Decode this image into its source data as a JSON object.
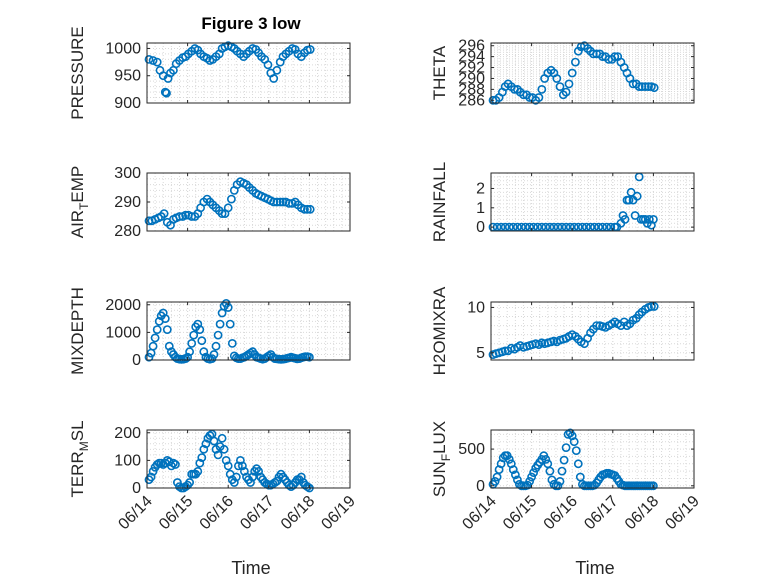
{
  "figure_title": "Figure 3 low",
  "colors": {
    "marker": "#0072BD",
    "axis": "#262626",
    "grid": "#d9d9d9"
  },
  "chart_data": [
    {
      "type": "scatter",
      "ylabel_main": "PRESSURE",
      "ylabel_sub": "",
      "ylabel_tail": "",
      "ylim": [
        900,
        1010
      ],
      "yticks": [
        "900",
        "950",
        "1000"
      ],
      "ytick_values": [
        900,
        950,
        1000
      ],
      "xlim": [
        0,
        5
      ],
      "xticks": [
        "06/14",
        "06/15",
        "06/16",
        "06/17",
        "06/18",
        "06/19"
      ],
      "show_xticklabels": false,
      "grid": "dotted",
      "x": [
        0.05,
        0.15,
        0.25,
        0.32,
        0.4,
        0.45,
        0.48,
        0.52,
        0.58,
        0.65,
        0.72,
        0.8,
        0.88,
        0.95,
        1.02,
        1.1,
        1.18,
        1.25,
        1.32,
        1.4,
        1.48,
        1.55,
        1.62,
        1.7,
        1.78,
        1.85,
        1.92,
        2.0,
        2.08,
        2.15,
        2.22,
        2.3,
        2.38,
        2.45,
        2.52,
        2.6,
        2.68,
        2.75,
        2.82,
        2.9,
        2.98,
        3.05,
        3.12,
        3.2,
        3.28,
        3.35,
        3.42,
        3.5,
        3.58,
        3.65,
        3.72,
        3.8,
        3.88,
        3.95,
        4.02
      ],
      "y": [
        980,
        978,
        975,
        960,
        950,
        920,
        918,
        945,
        955,
        960,
        972,
        978,
        983,
        985,
        990,
        995,
        1000,
        997,
        990,
        985,
        982,
        978,
        980,
        985,
        990,
        1000,
        1003,
        1005,
        1003,
        1000,
        995,
        990,
        985,
        990,
        995,
        1000,
        998,
        992,
        985,
        980,
        970,
        955,
        945,
        960,
        975,
        985,
        990,
        995,
        1000,
        998,
        990,
        985,
        992,
        997,
        998
      ]
    },
    {
      "type": "scatter",
      "ylabel_main": "THETA",
      "ylabel_sub": "",
      "ylabel_tail": "",
      "ylim": [
        285.5,
        296.5
      ],
      "yticks": [
        "286",
        "288",
        "290",
        "292",
        "294",
        "296"
      ],
      "ytick_values": [
        286,
        288,
        290,
        292,
        294,
        296
      ],
      "xlim": [
        0,
        5
      ],
      "xticks": [
        "06/14",
        "06/15",
        "06/16",
        "06/17",
        "06/18",
        "06/19"
      ],
      "show_xticklabels": false,
      "grid": "dotted",
      "x": [
        0.05,
        0.12,
        0.2,
        0.28,
        0.35,
        0.42,
        0.5,
        0.58,
        0.65,
        0.72,
        0.8,
        0.88,
        0.95,
        1.02,
        1.1,
        1.18,
        1.25,
        1.32,
        1.4,
        1.48,
        1.55,
        1.62,
        1.7,
        1.78,
        1.85,
        1.92,
        2.0,
        2.08,
        2.15,
        2.22,
        2.3,
        2.38,
        2.45,
        2.52,
        2.6,
        2.68,
        2.75,
        2.82,
        2.9,
        2.98,
        3.05,
        3.12,
        3.2,
        3.28,
        3.35,
        3.42,
        3.5,
        3.58,
        3.65,
        3.72,
        3.8,
        3.88,
        3.95,
        4.02
      ],
      "y": [
        286,
        286,
        286.5,
        287.5,
        288.5,
        289,
        288.5,
        288,
        288,
        287.5,
        287,
        287,
        286.5,
        286.5,
        286,
        286.5,
        288,
        290,
        291,
        291.5,
        291,
        290,
        288.5,
        287,
        287.5,
        289,
        291,
        293,
        295,
        295.8,
        296,
        295.5,
        295,
        294.5,
        294.5,
        294.5,
        294,
        294,
        293.5,
        293.5,
        294,
        294,
        293,
        292,
        291,
        290,
        289,
        289,
        288.5,
        288.5,
        288.5,
        288.5,
        288.5,
        288.3
      ]
    },
    {
      "type": "scatter",
      "ylabel_main": "AIR",
      "ylabel_sub": "T",
      "ylabel_tail": "EMP",
      "ylim": [
        280,
        300
      ],
      "yticks": [
        "280",
        "290",
        "300"
      ],
      "ytick_values": [
        280,
        290,
        300
      ],
      "xlim": [
        0,
        5
      ],
      "xticks": [
        "06/14",
        "06/15",
        "06/16",
        "06/17",
        "06/18",
        "06/19"
      ],
      "show_xticklabels": false,
      "grid": "dotted",
      "x": [
        0.05,
        0.12,
        0.2,
        0.28,
        0.35,
        0.42,
        0.5,
        0.58,
        0.65,
        0.72,
        0.8,
        0.88,
        0.95,
        1.02,
        1.1,
        1.18,
        1.25,
        1.32,
        1.4,
        1.48,
        1.55,
        1.62,
        1.7,
        1.78,
        1.85,
        1.92,
        2.0,
        2.08,
        2.15,
        2.22,
        2.3,
        2.38,
        2.45,
        2.52,
        2.6,
        2.68,
        2.75,
        2.82,
        2.9,
        2.98,
        3.05,
        3.12,
        3.2,
        3.28,
        3.35,
        3.42,
        3.5,
        3.58,
        3.65,
        3.72,
        3.8,
        3.88,
        3.95,
        4.02
      ],
      "y": [
        283.5,
        283.5,
        284,
        284.5,
        285,
        286,
        283,
        282,
        284,
        284.5,
        285,
        285,
        285.5,
        285.5,
        285,
        285,
        286,
        288,
        290,
        291,
        290,
        289,
        288,
        287,
        286,
        286,
        288,
        291,
        294,
        296,
        297,
        296.5,
        296,
        295,
        294,
        293,
        292.5,
        292,
        291.5,
        291,
        290.5,
        290,
        290,
        290,
        290,
        290,
        289.5,
        289.5,
        290,
        289,
        288,
        287.5,
        287.5,
        287.5
      ]
    },
    {
      "type": "scatter",
      "ylabel_main": "RAINFALL",
      "ylabel_sub": "",
      "ylabel_tail": "",
      "ylim": [
        -0.2,
        2.8
      ],
      "yticks": [
        "0",
        "1",
        "2"
      ],
      "ytick_values": [
        0,
        1,
        2
      ],
      "xlim": [
        0,
        5
      ],
      "xticks": [
        "06/14",
        "06/15",
        "06/16",
        "06/17",
        "06/18",
        "06/19"
      ],
      "show_xticklabels": false,
      "grid": "dotted",
      "x": [
        0.05,
        0.15,
        0.25,
        0.35,
        0.45,
        0.55,
        0.65,
        0.75,
        0.85,
        0.95,
        1.05,
        1.15,
        1.25,
        1.35,
        1.45,
        1.55,
        1.65,
        1.75,
        1.85,
        1.95,
        2.05,
        2.15,
        2.25,
        2.35,
        2.45,
        2.55,
        2.65,
        2.75,
        2.85,
        2.95,
        3.05,
        3.1,
        3.2,
        3.25,
        3.3,
        3.35,
        3.4,
        3.45,
        3.5,
        3.55,
        3.6,
        3.65,
        3.7,
        3.75,
        3.8,
        3.85,
        3.9,
        3.95,
        4.0
      ],
      "y": [
        0,
        0,
        0,
        0,
        0,
        0,
        0,
        0,
        0,
        0,
        0,
        0,
        0,
        0,
        0,
        0,
        0,
        0,
        0,
        0,
        0,
        0,
        0,
        0,
        0,
        0,
        0,
        0,
        0,
        0,
        0,
        0,
        0.2,
        0.6,
        0.4,
        1.4,
        1.4,
        1.8,
        1.4,
        0.6,
        1.6,
        2.6,
        0.4,
        0.4,
        0.4,
        0.2,
        0.4,
        0.1,
        0.4
      ]
    },
    {
      "type": "scatter",
      "ylabel_main": "MIXDEPTH",
      "ylabel_sub": "",
      "ylabel_tail": "",
      "ylim": [
        0,
        2100
      ],
      "yticks": [
        "0",
        "1000",
        "2000"
      ],
      "ytick_values": [
        0,
        1000,
        2000
      ],
      "xlim": [
        0,
        5
      ],
      "xticks": [
        "06/14",
        "06/15",
        "06/16",
        "06/17",
        "06/18",
        "06/19"
      ],
      "show_xticklabels": false,
      "grid": "dotted",
      "x": [
        0.05,
        0.1,
        0.15,
        0.2,
        0.25,
        0.3,
        0.35,
        0.4,
        0.45,
        0.5,
        0.55,
        0.6,
        0.65,
        0.7,
        0.75,
        0.8,
        0.85,
        0.9,
        0.95,
        1.0,
        1.05,
        1.1,
        1.15,
        1.2,
        1.25,
        1.3,
        1.35,
        1.4,
        1.45,
        1.5,
        1.55,
        1.6,
        1.65,
        1.7,
        1.75,
        1.8,
        1.85,
        1.9,
        1.95,
        2.0,
        2.05,
        2.1,
        2.15,
        2.2,
        2.25,
        2.3,
        2.35,
        2.4,
        2.45,
        2.5,
        2.55,
        2.6,
        2.65,
        2.7,
        2.75,
        2.8,
        2.85,
        2.9,
        2.95,
        3.0,
        3.05,
        3.1,
        3.15,
        3.2,
        3.25,
        3.3,
        3.35,
        3.4,
        3.45,
        3.5,
        3.55,
        3.6,
        3.65,
        3.7,
        3.75,
        3.8,
        3.85,
        3.9,
        3.95,
        4.0
      ],
      "y": [
        100,
        250,
        500,
        800,
        1100,
        1400,
        1600,
        1700,
        1500,
        1100,
        500,
        300,
        200,
        100,
        50,
        30,
        20,
        30,
        50,
        100,
        300,
        600,
        900,
        1200,
        1300,
        1100,
        700,
        300,
        100,
        50,
        30,
        50,
        200,
        500,
        900,
        1300,
        1700,
        1950,
        2050,
        1900,
        1300,
        600,
        150,
        80,
        50,
        50,
        80,
        100,
        150,
        200,
        250,
        300,
        200,
        100,
        80,
        50,
        30,
        50,
        100,
        150,
        200,
        100,
        50,
        40,
        30,
        20,
        30,
        40,
        60,
        80,
        100,
        80,
        60,
        40,
        50,
        80,
        100,
        120,
        120,
        100
      ]
    },
    {
      "type": "scatter",
      "ylabel_main": "H2OMIXRA",
      "ylabel_sub": "",
      "ylabel_tail": "",
      "ylim": [
        4.2,
        10.6
      ],
      "yticks": [
        "5",
        "10"
      ],
      "ytick_values": [
        5,
        10
      ],
      "xlim": [
        0,
        5
      ],
      "xticks": [
        "06/14",
        "06/15",
        "06/16",
        "06/17",
        "06/18",
        "06/19"
      ],
      "show_xticklabels": false,
      "grid": "dotted",
      "x": [
        0.05,
        0.12,
        0.2,
        0.28,
        0.35,
        0.42,
        0.5,
        0.58,
        0.65,
        0.72,
        0.8,
        0.88,
        0.95,
        1.02,
        1.1,
        1.18,
        1.25,
        1.32,
        1.4,
        1.48,
        1.55,
        1.62,
        1.7,
        1.78,
        1.85,
        1.92,
        2.0,
        2.08,
        2.15,
        2.22,
        2.3,
        2.38,
        2.45,
        2.52,
        2.6,
        2.68,
        2.75,
        2.82,
        2.9,
        2.98,
        3.05,
        3.12,
        3.2,
        3.28,
        3.35,
        3.42,
        3.5,
        3.58,
        3.65,
        3.72,
        3.8,
        3.88,
        3.95,
        4.02
      ],
      "y": [
        4.8,
        4.9,
        5.0,
        5.1,
        5.2,
        5.2,
        5.5,
        5.4,
        5.6,
        5.8,
        5.6,
        5.7,
        5.8,
        5.9,
        6.0,
        5.9,
        6.1,
        6.0,
        6.1,
        6.2,
        6.3,
        6.2,
        6.4,
        6.5,
        6.6,
        6.8,
        7.0,
        6.8,
        6.5,
        6.2,
        6.0,
        6.6,
        7.2,
        7.6,
        8.0,
        8.0,
        7.9,
        7.8,
        8.0,
        8.2,
        8.4,
        8.2,
        8.0,
        8.4,
        8.0,
        8.2,
        8.6,
        8.8,
        9.2,
        9.5,
        9.8,
        10.0,
        10.1,
        10.1
      ]
    },
    {
      "type": "scatter",
      "ylabel_main": "TERR",
      "ylabel_sub": "M",
      "ylabel_tail": "SL",
      "ylim": [
        0,
        210
      ],
      "yticks": [
        "0",
        "100",
        "200"
      ],
      "ytick_values": [
        0,
        100,
        200
      ],
      "xlim": [
        0,
        5
      ],
      "xticks": [
        "06/14",
        "06/15",
        "06/16",
        "06/17",
        "06/18",
        "06/19"
      ],
      "show_xticklabels": true,
      "grid": "dotted",
      "x": [
        0.05,
        0.1,
        0.15,
        0.2,
        0.25,
        0.3,
        0.35,
        0.4,
        0.45,
        0.5,
        0.55,
        0.6,
        0.65,
        0.7,
        0.75,
        0.8,
        0.85,
        0.9,
        0.95,
        1.0,
        1.05,
        1.1,
        1.15,
        1.2,
        1.25,
        1.3,
        1.35,
        1.4,
        1.45,
        1.5,
        1.55,
        1.6,
        1.65,
        1.7,
        1.75,
        1.8,
        1.85,
        1.9,
        1.95,
        2.0,
        2.05,
        2.1,
        2.15,
        2.2,
        2.25,
        2.3,
        2.35,
        2.4,
        2.45,
        2.5,
        2.55,
        2.6,
        2.65,
        2.7,
        2.75,
        2.8,
        2.85,
        2.9,
        2.95,
        3.0,
        3.05,
        3.1,
        3.15,
        3.2,
        3.25,
        3.3,
        3.35,
        3.4,
        3.45,
        3.5,
        3.55,
        3.6,
        3.65,
        3.7,
        3.75,
        3.8,
        3.85,
        3.9,
        3.95,
        4.0
      ],
      "y": [
        30,
        40,
        60,
        75,
        85,
        90,
        90,
        85,
        90,
        100,
        95,
        80,
        90,
        85,
        20,
        5,
        0,
        0,
        5,
        10,
        20,
        50,
        50,
        50,
        60,
        90,
        110,
        140,
        160,
        180,
        190,
        195,
        170,
        140,
        120,
        150,
        180,
        140,
        100,
        80,
        50,
        30,
        20,
        40,
        80,
        100,
        80,
        60,
        40,
        30,
        20,
        40,
        60,
        70,
        60,
        40,
        30,
        20,
        15,
        10,
        10,
        15,
        20,
        25,
        40,
        50,
        40,
        30,
        20,
        10,
        5,
        10,
        20,
        30,
        30,
        40,
        20,
        10,
        5,
        0
      ]
    },
    {
      "type": "scatter",
      "ylabel_main": "SUN",
      "ylabel_sub": "F",
      "ylabel_tail": "LUX",
      "ylim": [
        -30,
        760
      ],
      "yticks": [
        "0",
        "500"
      ],
      "ytick_values": [
        0,
        500
      ],
      "xlim": [
        0,
        5
      ],
      "xticks": [
        "06/14",
        "06/15",
        "06/16",
        "06/17",
        "06/18",
        "06/19"
      ],
      "show_xticklabels": true,
      "grid": "dotted",
      "x": [
        0.05,
        0.1,
        0.15,
        0.2,
        0.25,
        0.3,
        0.35,
        0.4,
        0.45,
        0.5,
        0.55,
        0.6,
        0.65,
        0.7,
        0.75,
        0.8,
        0.85,
        0.9,
        0.95,
        1.0,
        1.05,
        1.1,
        1.15,
        1.2,
        1.25,
        1.3,
        1.35,
        1.4,
        1.45,
        1.5,
        1.55,
        1.6,
        1.65,
        1.7,
        1.75,
        1.8,
        1.85,
        1.9,
        1.95,
        2.0,
        2.05,
        2.1,
        2.15,
        2.2,
        2.25,
        2.3,
        2.35,
        2.4,
        2.45,
        2.5,
        2.55,
        2.6,
        2.65,
        2.7,
        2.75,
        2.8,
        2.85,
        2.9,
        2.95,
        3.0,
        3.05,
        3.1,
        3.15,
        3.2,
        3.25,
        3.3,
        3.35,
        3.4,
        3.45,
        3.5,
        3.55,
        3.6,
        3.65,
        3.7,
        3.75,
        3.8,
        3.85,
        3.9,
        3.95,
        4.0
      ],
      "y": [
        20,
        60,
        120,
        220,
        300,
        380,
        410,
        410,
        360,
        300,
        220,
        150,
        80,
        20,
        0,
        0,
        0,
        10,
        60,
        120,
        180,
        240,
        280,
        320,
        360,
        410,
        360,
        300,
        200,
        80,
        20,
        0,
        0,
        60,
        200,
        350,
        520,
        700,
        720,
        680,
        600,
        480,
        300,
        120,
        20,
        0,
        0,
        0,
        0,
        0,
        10,
        40,
        80,
        120,
        150,
        160,
        170,
        170,
        160,
        150,
        140,
        100,
        60,
        20,
        10,
        0,
        0,
        0,
        0,
        0,
        0,
        0,
        0,
        0,
        0,
        0,
        0,
        0,
        0,
        0
      ]
    }
  ],
  "x_axis_label": "Time"
}
